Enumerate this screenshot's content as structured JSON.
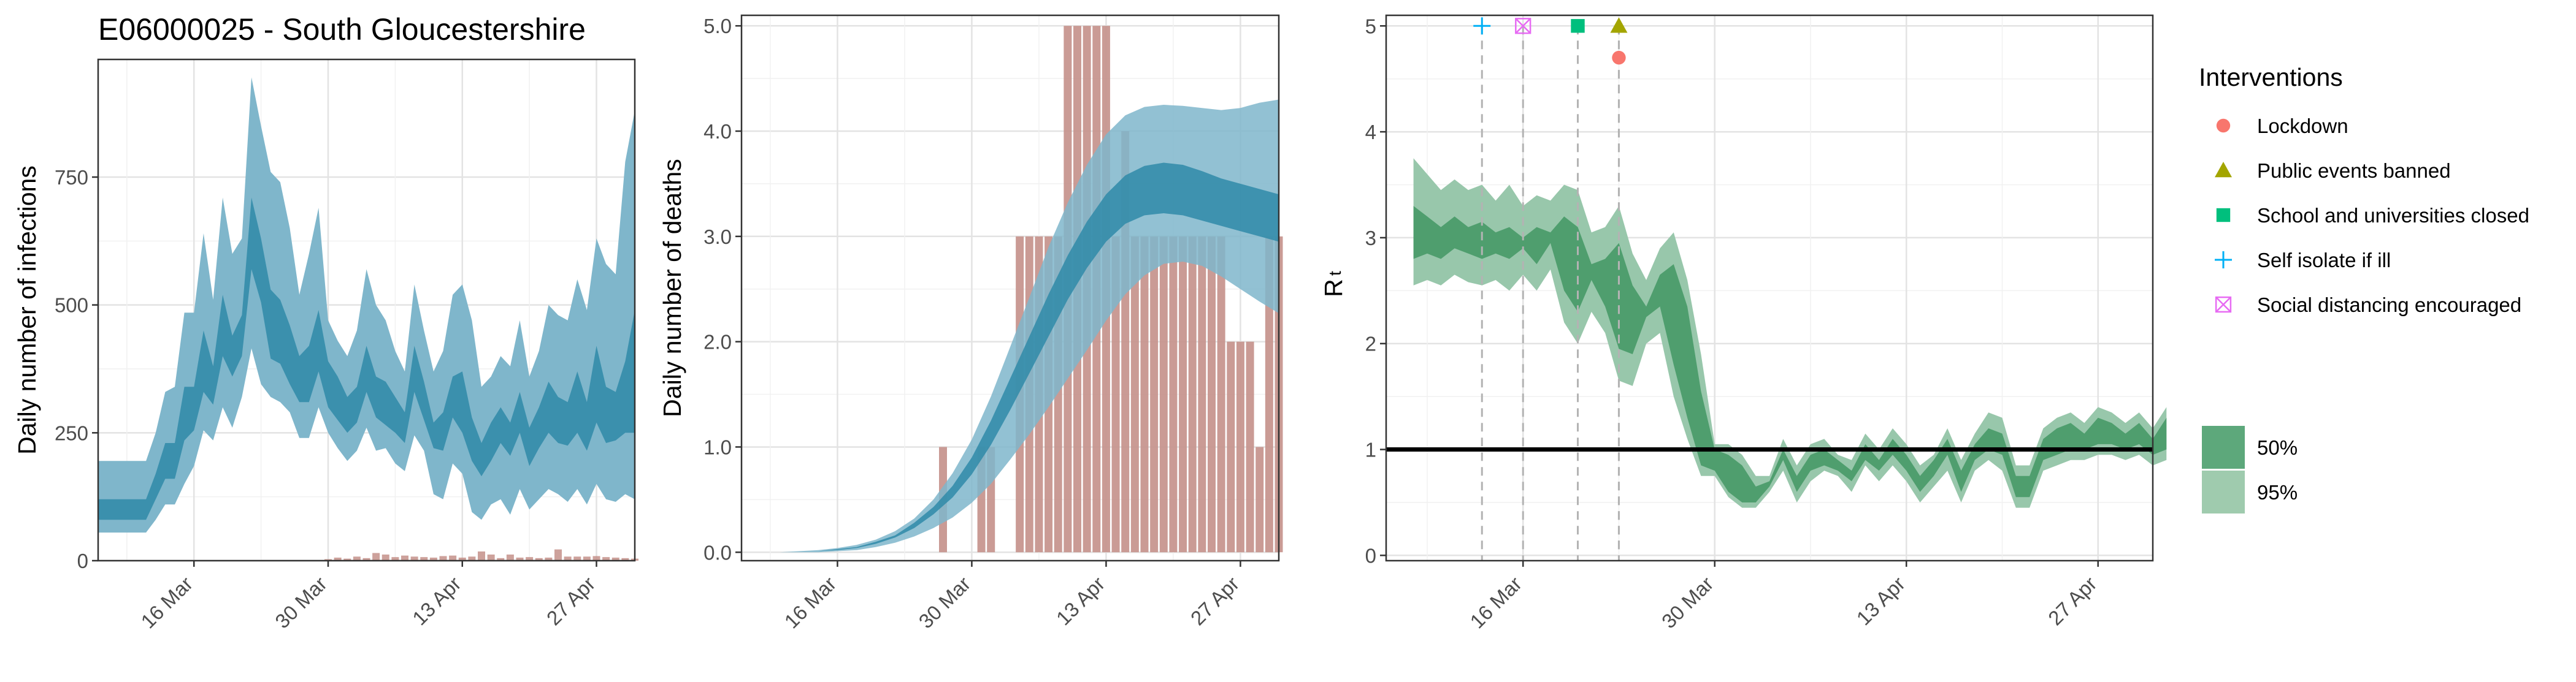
{
  "chart_data": [
    {
      "type": "area",
      "title": "E06000025 - South Gloucestershire",
      "xlabel": "",
      "ylabel": "Daily number of infections",
      "x_start": "2020-03-06",
      "x_end": "2020-05-01",
      "x_ticks": [
        "16 Mar",
        "30 Mar",
        "13 Apr",
        "27 Apr"
      ],
      "y_ticks": [
        "0",
        "250",
        "500",
        "750"
      ],
      "ylim": [
        0,
        980
      ],
      "grid": true,
      "colors": {
        "ci95": "#7fb6cb",
        "ci50": "#2f89a8",
        "bars": "#c4908a"
      },
      "dates": [
        "2020-03-06",
        "2020-03-07",
        "2020-03-08",
        "2020-03-09",
        "2020-03-10",
        "2020-03-11",
        "2020-03-12",
        "2020-03-13",
        "2020-03-14",
        "2020-03-15",
        "2020-03-16",
        "2020-03-17",
        "2020-03-18",
        "2020-03-19",
        "2020-03-20",
        "2020-03-21",
        "2020-03-22",
        "2020-03-23",
        "2020-03-24",
        "2020-03-25",
        "2020-03-26",
        "2020-03-27",
        "2020-03-28",
        "2020-03-29",
        "2020-03-30",
        "2020-03-31",
        "2020-04-01",
        "2020-04-02",
        "2020-04-03",
        "2020-04-04",
        "2020-04-05",
        "2020-04-06",
        "2020-04-07",
        "2020-04-08",
        "2020-04-09",
        "2020-04-10",
        "2020-04-11",
        "2020-04-12",
        "2020-04-13",
        "2020-04-14",
        "2020-04-15",
        "2020-04-16",
        "2020-04-17",
        "2020-04-18",
        "2020-04-19",
        "2020-04-20",
        "2020-04-21",
        "2020-04-22",
        "2020-04-23",
        "2020-04-24",
        "2020-04-25",
        "2020-04-26",
        "2020-04-27",
        "2020-04-28",
        "2020-04-29",
        "2020-04-30",
        "2020-05-01"
      ],
      "ci95_lower": [
        55,
        55,
        55,
        55,
        55,
        55,
        80,
        110,
        110,
        150,
        185,
        255,
        235,
        300,
        260,
        320,
        415,
        345,
        320,
        310,
        290,
        240,
        240,
        300,
        250,
        220,
        195,
        215,
        260,
        215,
        220,
        190,
        175,
        245,
        215,
        130,
        120,
        190,
        170,
        95,
        80,
        110,
        120,
        90,
        140,
        100,
        120,
        140,
        130,
        115,
        140,
        110,
        150,
        120,
        115,
        130,
        120
      ],
      "ci95_upper": [
        195,
        195,
        195,
        195,
        195,
        195,
        250,
        330,
        340,
        485,
        485,
        640,
        510,
        710,
        600,
        630,
        945,
        850,
        760,
        740,
        650,
        520,
        600,
        690,
        470,
        430,
        400,
        450,
        570,
        500,
        470,
        410,
        370,
        540,
        450,
        370,
        410,
        520,
        540,
        470,
        340,
        360,
        400,
        380,
        470,
        360,
        410,
        500,
        480,
        470,
        550,
        490,
        630,
        580,
        560,
        780,
        880
      ],
      "ci50_lower": [
        80,
        80,
        80,
        80,
        80,
        80,
        120,
        160,
        160,
        235,
        255,
        330,
        305,
        400,
        360,
        400,
        570,
        505,
        395,
        385,
        345,
        310,
        310,
        370,
        300,
        275,
        250,
        270,
        330,
        280,
        265,
        250,
        230,
        330,
        275,
        220,
        215,
        280,
        250,
        195,
        165,
        195,
        230,
        205,
        250,
        185,
        220,
        250,
        230,
        225,
        250,
        215,
        270,
        230,
        235,
        250,
        250
      ],
      "ci50_upper": [
        120,
        120,
        120,
        120,
        120,
        120,
        170,
        230,
        230,
        340,
        340,
        450,
        380,
        520,
        440,
        480,
        710,
        630,
        530,
        510,
        460,
        400,
        420,
        490,
        390,
        360,
        320,
        340,
        420,
        360,
        350,
        320,
        290,
        420,
        350,
        270,
        290,
        360,
        370,
        280,
        230,
        270,
        300,
        270,
        330,
        260,
        300,
        350,
        320,
        310,
        370,
        310,
        420,
        340,
        330,
        390,
        490
      ],
      "observed": [
        0,
        0,
        0,
        0,
        0,
        0,
        0,
        0,
        0,
        0,
        0,
        0,
        0,
        0,
        0,
        0,
        0,
        0,
        0,
        0,
        0,
        0,
        0,
        0,
        3,
        6,
        4,
        8,
        5,
        15,
        12,
        7,
        10,
        8,
        7,
        6,
        9,
        10,
        6,
        8,
        18,
        12,
        5,
        12,
        6,
        7,
        5,
        6,
        22,
        8,
        8,
        8,
        9,
        7,
        6,
        5,
        4
      ]
    },
    {
      "type": "area",
      "title": "",
      "xlabel": "",
      "ylabel": "Daily number of deaths",
      "x_start": "2020-03-06",
      "x_end": "2020-05-01",
      "x_ticks": [
        "16 Mar",
        "30 Mar",
        "13 Apr",
        "27 Apr"
      ],
      "y_ticks": [
        "0.0",
        "1.0",
        "2.0",
        "3.0",
        "4.0",
        "5.0"
      ],
      "ylim": [
        -0.08,
        5.1
      ],
      "grid": true,
      "colors": {
        "ci95": "#7fb6cb",
        "ci50": "#2f89a8",
        "bars": "#c4908a"
      },
      "model_x": [
        0,
        2,
        4,
        6,
        8,
        10,
        12,
        14,
        16,
        18,
        20,
        22,
        24,
        26,
        28,
        30,
        32,
        34,
        36,
        38,
        40,
        42,
        44,
        46,
        48,
        50,
        52,
        54,
        56
      ],
      "ci95_lower": [
        0,
        0,
        0,
        0,
        0,
        0.01,
        0.02,
        0.05,
        0.09,
        0.15,
        0.23,
        0.33,
        0.47,
        0.65,
        0.88,
        1.12,
        1.38,
        1.65,
        1.92,
        2.2,
        2.45,
        2.63,
        2.74,
        2.76,
        2.72,
        2.62,
        2.5,
        2.38,
        2.27
      ],
      "ci95_upper": [
        0,
        0,
        0,
        0.01,
        0.02,
        0.04,
        0.07,
        0.12,
        0.2,
        0.32,
        0.5,
        0.75,
        1.07,
        1.48,
        1.95,
        2.42,
        2.9,
        3.32,
        3.68,
        3.97,
        4.15,
        4.23,
        4.25,
        4.24,
        4.22,
        4.2,
        4.22,
        4.27,
        4.3
      ],
      "ci50_lower": [
        0,
        0,
        0,
        0,
        0.01,
        0.02,
        0.04,
        0.08,
        0.14,
        0.23,
        0.36,
        0.52,
        0.74,
        1.02,
        1.35,
        1.7,
        2.05,
        2.4,
        2.7,
        2.95,
        3.12,
        3.2,
        3.22,
        3.2,
        3.15,
        3.1,
        3.05,
        3.0,
        2.95
      ],
      "ci50_upper": [
        0,
        0,
        0,
        0,
        0.01,
        0.03,
        0.05,
        0.1,
        0.16,
        0.28,
        0.43,
        0.63,
        0.9,
        1.25,
        1.65,
        2.05,
        2.45,
        2.82,
        3.14,
        3.4,
        3.58,
        3.67,
        3.7,
        3.68,
        3.62,
        3.55,
        3.5,
        3.45,
        3.4
      ],
      "obs_start": "2020-03-27",
      "observed": [
        1,
        0,
        0,
        0,
        1,
        1,
        0,
        0,
        3,
        3,
        3,
        3,
        3,
        5,
        5,
        5,
        5,
        5,
        3,
        4,
        3,
        3,
        3,
        3,
        3,
        3,
        3,
        3,
        3,
        3,
        2,
        2,
        2,
        1,
        3,
        3
      ]
    },
    {
      "type": "area",
      "title": "",
      "xlabel": "",
      "ylabel": "R",
      "ylabel_subscript": "t",
      "x_start": "2020-03-06",
      "x_end": "2020-05-01",
      "x_ticks": [
        "16 Mar",
        "30 Mar",
        "13 Apr",
        "27 Apr"
      ],
      "y_ticks": [
        "0",
        "1",
        "2",
        "3",
        "4",
        "5"
      ],
      "ylim": [
        -0.05,
        5.1
      ],
      "grid": true,
      "reference_line": 1,
      "colors": {
        "ci95": "#98c7ab",
        "ci50": "#4f9e6e",
        "reference": "#000000"
      },
      "dates_from": "2020-03-08",
      "ci95_lower": [
        2.55,
        2.6,
        2.55,
        2.65,
        2.58,
        2.55,
        2.6,
        2.5,
        2.65,
        2.5,
        2.7,
        2.2,
        2.0,
        2.3,
        2.1,
        1.65,
        1.6,
        2.0,
        2.1,
        1.5,
        1.1,
        0.75,
        0.75,
        0.55,
        0.45,
        0.45,
        0.6,
        0.8,
        0.5,
        0.7,
        0.8,
        0.75,
        0.6,
        0.85,
        0.7,
        0.85,
        0.7,
        0.5,
        0.65,
        0.8,
        0.5,
        0.8,
        0.9,
        0.8,
        0.45,
        0.45,
        0.8,
        0.85,
        0.9,
        0.9,
        0.95,
        0.95,
        0.9,
        0.95,
        0.85,
        0.9
      ],
      "ci95_upper": [
        3.75,
        3.6,
        3.45,
        3.55,
        3.45,
        3.5,
        3.35,
        3.5,
        3.3,
        3.4,
        3.35,
        3.5,
        3.45,
        3.05,
        3.1,
        3.3,
        2.85,
        2.6,
        2.9,
        3.05,
        2.6,
        1.9,
        1.05,
        1.05,
        0.95,
        0.75,
        0.75,
        1.1,
        0.85,
        1.05,
        1.1,
        0.95,
        0.9,
        1.15,
        1.0,
        1.2,
        1.05,
        0.85,
        0.95,
        1.2,
        0.9,
        1.15,
        1.35,
        1.3,
        0.85,
        0.85,
        1.2,
        1.3,
        1.35,
        1.25,
        1.4,
        1.35,
        1.25,
        1.35,
        1.2,
        1.4
      ],
      "ci50_lower": [
        2.8,
        2.85,
        2.8,
        2.9,
        2.85,
        2.8,
        2.85,
        2.8,
        2.9,
        2.75,
        2.95,
        2.5,
        2.3,
        2.6,
        2.35,
        1.95,
        1.9,
        2.25,
        2.35,
        1.8,
        1.3,
        0.85,
        0.8,
        0.6,
        0.5,
        0.5,
        0.65,
        0.9,
        0.6,
        0.8,
        0.85,
        0.8,
        0.7,
        0.9,
        0.8,
        0.95,
        0.8,
        0.6,
        0.75,
        0.95,
        0.6,
        0.9,
        1.0,
        0.95,
        0.55,
        0.55,
        0.9,
        0.95,
        1.0,
        1.0,
        1.05,
        1.05,
        1.0,
        1.05,
        0.95,
        1.0
      ],
      "ci50_upper": [
        3.3,
        3.2,
        3.1,
        3.2,
        3.1,
        3.15,
        3.05,
        3.1,
        3.0,
        3.1,
        3.05,
        3.2,
        3.1,
        2.75,
        2.8,
        2.95,
        2.55,
        2.35,
        2.65,
        2.75,
        2.35,
        1.55,
        1.0,
        0.95,
        0.85,
        0.65,
        0.7,
        1.0,
        0.75,
        0.95,
        1.0,
        0.9,
        0.8,
        1.05,
        0.9,
        1.1,
        0.95,
        0.75,
        0.9,
        1.1,
        0.8,
        1.05,
        1.2,
        1.15,
        0.75,
        0.75,
        1.1,
        1.2,
        1.25,
        1.15,
        1.3,
        1.25,
        1.15,
        1.25,
        1.1,
        1.3
      ],
      "interventions": [
        {
          "date": "2020-03-16",
          "name": "Social distancing encouraged",
          "symbol": "boxx",
          "color": "#e76bf3",
          "y": 5
        },
        {
          "date": "2020-03-13",
          "name": "Self isolate if ill",
          "symbol": "plus",
          "color": "#00b0f6",
          "y": 5
        },
        {
          "date": "2020-03-20",
          "name": "School and universities closed",
          "symbol": "square",
          "color": "#00bf7d",
          "y": 5
        },
        {
          "date": "2020-03-23",
          "name": "Public events banned",
          "symbol": "triangle",
          "color": "#a3a500",
          "y": 5
        },
        {
          "date": "2020-03-23",
          "name": "Lockdown",
          "symbol": "circle",
          "color": "#f8766d",
          "y": 4.7
        }
      ]
    }
  ],
  "legend": {
    "interventions_title": "Interventions",
    "interventions": [
      {
        "label": "Lockdown",
        "symbol": "circle",
        "color": "#f8766d"
      },
      {
        "label": "Public events banned",
        "symbol": "triangle",
        "color": "#a3a500"
      },
      {
        "label": "School and universities closed",
        "symbol": "square",
        "color": "#00bf7d"
      },
      {
        "label": "Self isolate if ill",
        "symbol": "plus",
        "color": "#00b0f6"
      },
      {
        "label": "Social distancing encouraged",
        "symbol": "boxx",
        "color": "#e76bf3"
      }
    ],
    "intervals": [
      {
        "label": "50%",
        "color": "#5da87b"
      },
      {
        "label": "95%",
        "color": "#9fcbae"
      }
    ]
  }
}
